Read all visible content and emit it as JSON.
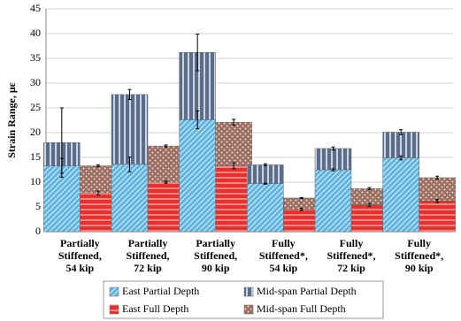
{
  "chart_data": {
    "type": "stacked_bar_error",
    "y_label": "Strain Range, με",
    "categories": [
      "Partially\nStiffened,\n54 kip",
      "Partially\nStiffened,\n72 kip",
      "Partially\nStiffened,\n90 kip",
      "Fully\nStiffened*,\n54 kip",
      "Fully\nStiffened*,\n72 kip",
      "Fully\nStiffened*,\n90 kip"
    ],
    "series": [
      {
        "name": "East Partial Depth",
        "color": "#5fb3e0",
        "stack": 1,
        "pattern": "diagonal",
        "values": [
          13.3,
          13.6,
          22.6,
          9.7,
          12.5,
          14.9
        ],
        "errors": [
          1.5,
          1.5,
          1.8,
          0.1,
          0.2,
          0.4
        ]
      },
      {
        "name": "Mid-span Partial Depth",
        "color": "#5a6e8c",
        "stack": 1,
        "pattern": "vertical",
        "values": [
          4.7,
          14.1,
          13.6,
          3.8,
          4.3,
          5.2
        ],
        "errors": [
          7,
          1,
          3.7,
          0.2,
          0.3,
          0.5
        ]
      },
      {
        "name": "East Full Depth",
        "color": "#e8302c",
        "stack": 2,
        "pattern": "horizontal",
        "values": [
          7.8,
          10.0,
          13.3,
          4.5,
          5.4,
          6.2
        ],
        "errors": [
          0.4,
          0.2,
          0.6,
          0.2,
          0.3,
          0.3
        ]
      },
      {
        "name": "Mid-span Full Depth",
        "color": "#9c6e62",
        "stack": 2,
        "pattern": "dots",
        "values": [
          5.5,
          7.3,
          8.8,
          2.3,
          3.3,
          4.7
        ],
        "errors": [
          0.2,
          0.2,
          0.6,
          0.1,
          0.2,
          0.3
        ]
      }
    ],
    "ylim": [
      0,
      45
    ],
    "yticks": [
      0,
      5,
      10,
      15,
      20,
      25,
      30,
      35,
      40,
      45
    ],
    "grid": true
  }
}
